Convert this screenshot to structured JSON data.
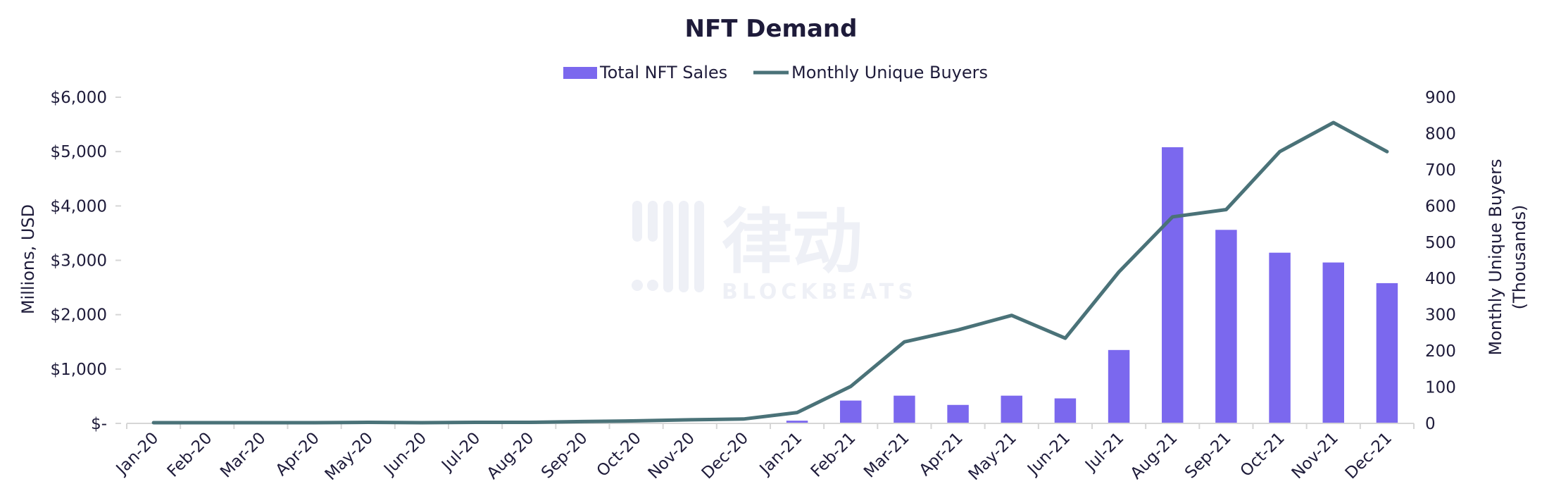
{
  "chart_data": {
    "type": "bar",
    "title": "NFT Demand",
    "categories": [
      "Jan-20",
      "Feb-20",
      "Mar-20",
      "Apr-20",
      "May-20",
      "Jun-20",
      "Jul-20",
      "Aug-20",
      "Sep-20",
      "Oct-20",
      "Nov-20",
      "Dec-20",
      "Jan-21",
      "Feb-21",
      "Mar-21",
      "Apr-21",
      "May-21",
      "Jun-21",
      "Jul-21",
      "Aug-21",
      "Sep-21",
      "Oct-21",
      "Nov-21",
      "Dec-21"
    ],
    "series": [
      {
        "name": "Total NFT Sales",
        "type": "bar",
        "axis": "left",
        "color": "#7b68ee",
        "values": [
          0,
          0,
          0,
          0,
          0,
          0,
          0,
          0,
          0,
          0,
          0,
          0,
          50,
          420,
          510,
          340,
          510,
          460,
          1350,
          5080,
          3560,
          3140,
          2960,
          2580
        ]
      },
      {
        "name": "Monthly Unique Buyers",
        "type": "line",
        "axis": "right",
        "color": "#4a7278",
        "values": [
          2,
          2,
          2,
          2,
          3,
          2,
          3,
          3,
          5,
          7,
          10,
          12,
          30,
          102,
          225,
          258,
          298,
          235,
          418,
          570,
          590,
          750,
          830,
          750
        ]
      }
    ],
    "y_left": {
      "label": "Millions, USD",
      "range": [
        0,
        6000
      ],
      "tick_labels": [
        "$-",
        "$1,000",
        "$2,000",
        "$3,000",
        "$4,000",
        "$5,000",
        "$6,000"
      ]
    },
    "y_right": {
      "label_line1": "Monthly Unique Buyers",
      "label_line2": "(Thousands)",
      "range": [
        0,
        900
      ],
      "tick_labels": [
        "0",
        "100",
        "200",
        "300",
        "400",
        "500",
        "600",
        "700",
        "800",
        "900"
      ]
    },
    "legend_position": "top-center",
    "grid": false
  },
  "watermark": {
    "text_cn": "律动",
    "text_en": "BLOCKBEATS"
  }
}
